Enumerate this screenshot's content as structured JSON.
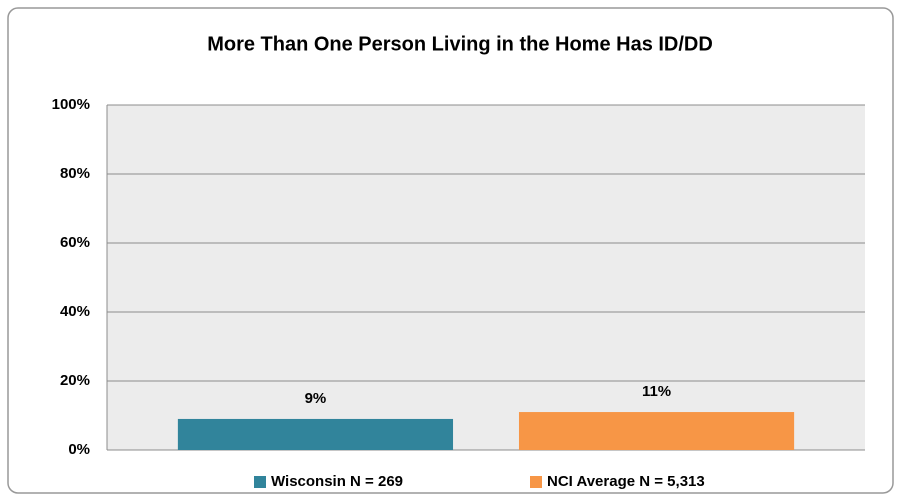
{
  "chart_data": {
    "type": "bar",
    "title": "More Than One Person Living in the Home Has ID/DD",
    "categories": [
      null
    ],
    "series": [
      {
        "name": "Wisconsin N = 269",
        "color": "#31849b",
        "values": [
          9
        ],
        "value_labels": [
          "9%"
        ]
      },
      {
        "name": "NCI Average N = 5,313",
        "color": "#f79646",
        "values": [
          11
        ],
        "value_labels": [
          "11%"
        ]
      }
    ],
    "ylim": [
      0,
      100
    ],
    "yticks": [
      {
        "value": 0,
        "label": "0%"
      },
      {
        "value": 20,
        "label": "20%"
      },
      {
        "value": 40,
        "label": "40%"
      },
      {
        "value": 60,
        "label": "60%"
      },
      {
        "value": 80,
        "label": "80%"
      },
      {
        "value": 100,
        "label": "100%"
      }
    ],
    "grid": true,
    "legend": "bottom"
  }
}
